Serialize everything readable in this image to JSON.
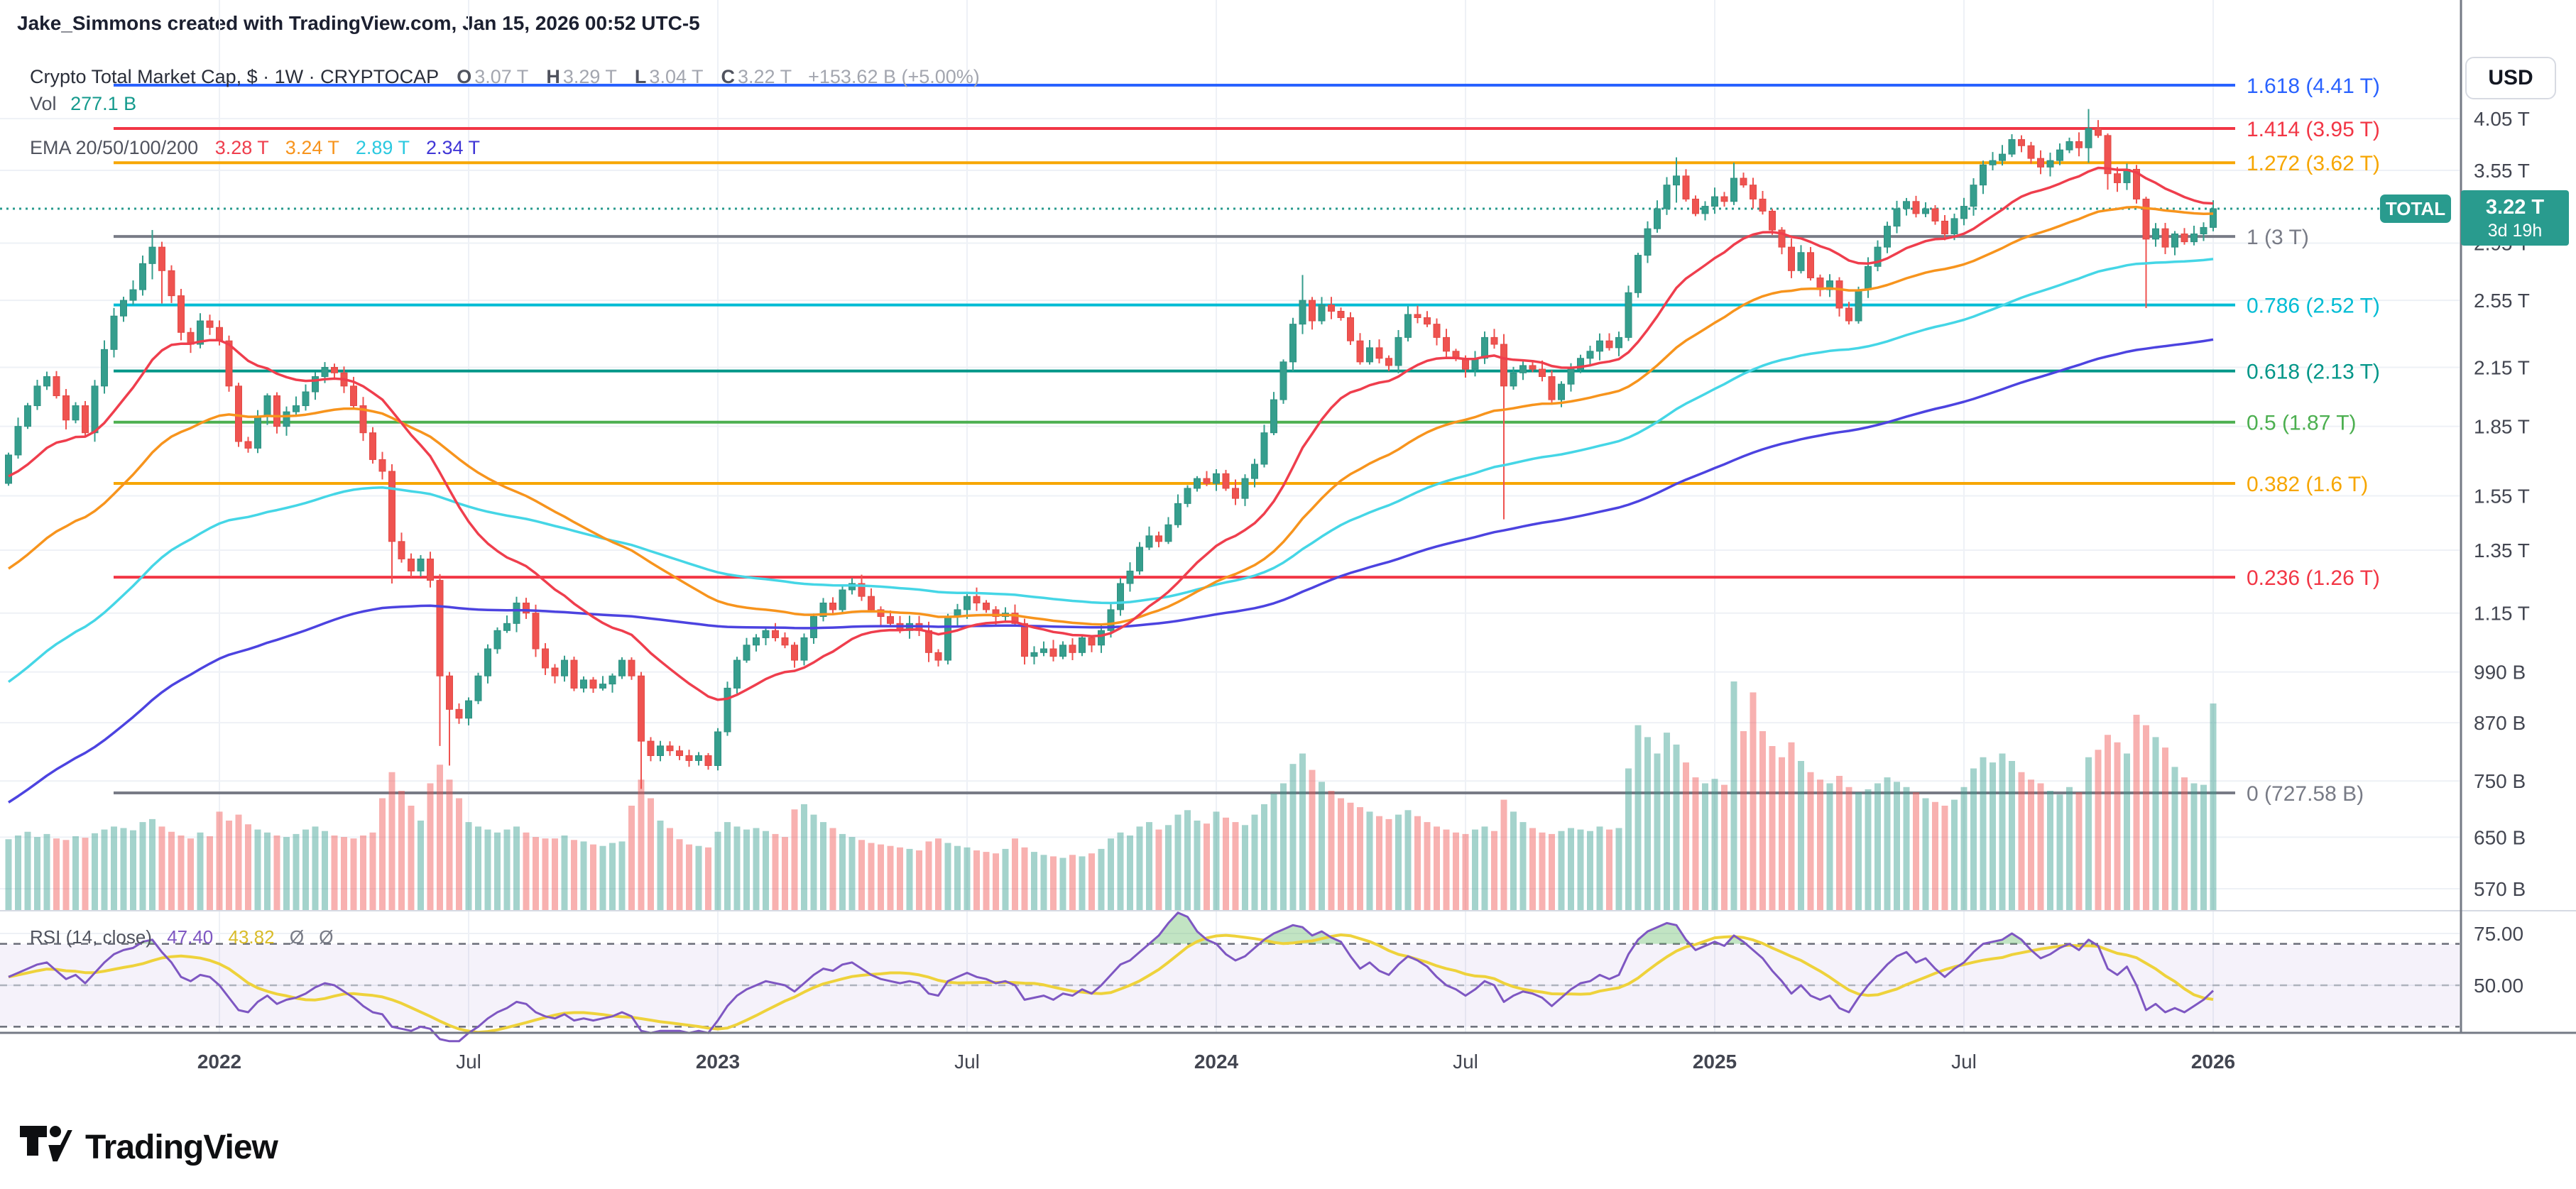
{
  "credit": "Jake_Simmons created with TradingView.com, Jan 15, 2026 00:52 UTC-5",
  "legend": {
    "title": "Crypto Total Market Cap, $ · 1W · CRYPTOCAP",
    "o_label": "O",
    "o_value": "3.07 T",
    "h_label": "H",
    "h_value": "3.29 T",
    "l_label": "L",
    "l_value": "3.04 T",
    "c_label": "C",
    "c_value": "3.22 T",
    "change": "+153.62 B (+5.00%)",
    "vol_label": "Vol",
    "vol_value": "277.1 B",
    "ema_label": "EMA 20/50/100/200",
    "ema20": "3.28 T",
    "ema50": "3.24 T",
    "ema100": "2.89 T",
    "ema200": "2.34 T"
  },
  "rsi_legend": {
    "label": "RSI (14, close)",
    "value": "47.40",
    "ma_value": "43.82",
    "na1": "Ø",
    "na2": "Ø"
  },
  "price_scale": {
    "currency": "USD",
    "badge_label": "TOTAL",
    "badge_price": "3.22 T",
    "badge_countdown": "3d 19h",
    "ticks": [
      {
        "label": "4.05 T",
        "value": 4.05
      },
      {
        "label": "3.55 T",
        "value": 3.55
      },
      {
        "label": "2.95 T",
        "value": 2.95
      },
      {
        "label": "2.55 T",
        "value": 2.55
      },
      {
        "label": "2.15 T",
        "value": 2.15
      },
      {
        "label": "1.85 T",
        "value": 1.85
      },
      {
        "label": "1.55 T",
        "value": 1.55
      },
      {
        "label": "1.35 T",
        "value": 1.35
      },
      {
        "label": "1.15 T",
        "value": 1.15
      },
      {
        "label": "990 B",
        "value": 0.99
      },
      {
        "label": "870 B",
        "value": 0.87
      },
      {
        "label": "750 B",
        "value": 0.75
      },
      {
        "label": "650 B",
        "value": 0.65
      },
      {
        "label": "570 B",
        "value": 0.57
      }
    ]
  },
  "rsi_scale": {
    "ticks": [
      {
        "label": "75.00",
        "value": 75
      },
      {
        "label": "50.00",
        "value": 50
      }
    ]
  },
  "time_axis": {
    "ticks": [
      {
        "label": "2022",
        "week": 22,
        "major": true
      },
      {
        "label": "Jul",
        "week": 48,
        "major": false
      },
      {
        "label": "2023",
        "week": 74,
        "major": true
      },
      {
        "label": "Jul",
        "week": 100,
        "major": false
      },
      {
        "label": "2024",
        "week": 126,
        "major": true
      },
      {
        "label": "Jul",
        "week": 152,
        "major": false
      },
      {
        "label": "2025",
        "week": 178,
        "major": true
      },
      {
        "label": "Jul",
        "week": 204,
        "major": false
      },
      {
        "label": "2026",
        "week": 230,
        "major": true
      }
    ]
  },
  "fib": {
    "levels": [
      {
        "ratio": "1.618",
        "label": "1.618 (4.41 T)",
        "value": 4.41,
        "color": "#2962ff"
      },
      {
        "ratio": "1.414",
        "label": "1.414 (3.95 T)",
        "value": 3.95,
        "color": "#f23645"
      },
      {
        "ratio": "1.272",
        "label": "1.272 (3.62 T)",
        "value": 3.62,
        "color": "#f7a600"
      },
      {
        "ratio": "1",
        "label": "1 (3 T)",
        "value": 3.0,
        "color": "#787b86"
      },
      {
        "ratio": "0.786",
        "label": "0.786 (2.52 T)",
        "value": 2.52,
        "color": "#00bcd4"
      },
      {
        "ratio": "0.618",
        "label": "0.618 (2.13 T)",
        "value": 2.13,
        "color": "#009688"
      },
      {
        "ratio": "0.5",
        "label": "0.5 (1.87 T)",
        "value": 1.87,
        "color": "#4caf50"
      },
      {
        "ratio": "0.382",
        "label": "0.382 (1.6 T)",
        "value": 1.6,
        "color": "#f7a600"
      },
      {
        "ratio": "0.236",
        "label": "0.236 (1.26 T)",
        "value": 1.26,
        "color": "#f23645"
      },
      {
        "ratio": "0",
        "label": "0 (727.58 B)",
        "value": 0.72758,
        "color": "#787b86"
      }
    ]
  },
  "footer": {
    "brand": "TradingView"
  },
  "chart_data": {
    "type": "candlestick",
    "title": "Crypto Total Market Cap",
    "symbol": "CRYPTOCAP:TOTAL",
    "timeframe": "1W",
    "x_range": {
      "start": "Aug 2021",
      "end": "Jan 2026",
      "points": 231
    },
    "y_axis": {
      "scale": "log",
      "units": "USD trillions",
      "visible_range": [
        0.52,
        4.6
      ]
    },
    "current": {
      "open": 3.07,
      "high": 3.29,
      "low": 3.04,
      "close": 3.22,
      "change_b": 153.62,
      "change_pct": 5.0,
      "volume_b": 277.1
    },
    "first_open": 1.6,
    "closes_t": [
      1.72,
      1.85,
      1.95,
      2.05,
      2.1,
      2.0,
      1.88,
      1.95,
      1.82,
      2.05,
      2.25,
      2.45,
      2.55,
      2.62,
      2.8,
      2.92,
      2.75,
      2.58,
      2.35,
      2.28,
      2.42,
      2.38,
      2.3,
      2.05,
      1.78,
      1.75,
      1.9,
      2.0,
      1.85,
      1.92,
      1.95,
      2.02,
      2.1,
      2.15,
      2.12,
      2.05,
      1.95,
      1.82,
      1.7,
      1.65,
      1.38,
      1.32,
      1.28,
      1.32,
      1.25,
      0.98,
      0.9,
      0.88,
      0.92,
      0.98,
      1.05,
      1.1,
      1.12,
      1.18,
      1.15,
      1.05,
      1.0,
      0.98,
      1.02,
      0.95,
      0.97,
      0.95,
      0.96,
      0.98,
      1.02,
      0.98,
      0.83,
      0.8,
      0.82,
      0.81,
      0.8,
      0.79,
      0.8,
      0.78,
      0.85,
      0.95,
      1.02,
      1.06,
      1.08,
      1.1,
      1.08,
      1.06,
      1.02,
      1.08,
      1.14,
      1.18,
      1.16,
      1.22,
      1.24,
      1.2,
      1.16,
      1.14,
      1.12,
      1.1,
      1.12,
      1.1,
      1.04,
      1.02,
      1.14,
      1.16,
      1.2,
      1.18,
      1.16,
      1.14,
      1.15,
      1.12,
      1.03,
      1.04,
      1.05,
      1.03,
      1.06,
      1.04,
      1.08,
      1.06,
      1.1,
      1.16,
      1.24,
      1.28,
      1.36,
      1.4,
      1.38,
      1.44,
      1.52,
      1.58,
      1.62,
      1.6,
      1.64,
      1.58,
      1.54,
      1.62,
      1.68,
      1.82,
      1.98,
      2.18,
      2.4,
      2.55,
      2.42,
      2.52,
      2.48,
      2.44,
      2.3,
      2.18,
      2.26,
      2.2,
      2.16,
      2.32,
      2.46,
      2.44,
      2.4,
      2.32,
      2.24,
      2.2,
      2.14,
      2.2,
      2.32,
      2.28,
      2.05,
      2.12,
      2.16,
      2.14,
      2.1,
      1.98,
      2.06,
      2.14,
      2.2,
      2.24,
      2.3,
      2.26,
      2.32,
      2.6,
      2.86,
      3.06,
      3.22,
      3.42,
      3.5,
      3.3,
      3.18,
      3.24,
      3.32,
      3.28,
      3.48,
      3.42,
      3.3,
      3.2,
      3.05,
      2.92,
      2.75,
      2.88,
      2.7,
      2.62,
      2.68,
      2.5,
      2.42,
      2.62,
      2.78,
      2.92,
      3.08,
      3.22,
      3.28,
      3.18,
      3.22,
      3.12,
      3.02,
      3.14,
      3.24,
      3.42,
      3.6,
      3.64,
      3.7,
      3.84,
      3.78,
      3.66,
      3.58,
      3.64,
      3.74,
      3.82,
      3.76,
      3.95,
      3.88,
      3.52,
      3.44,
      3.56,
      3.3,
      2.98,
      3.06,
      2.92,
      3.02,
      2.96,
      3.02,
      3.07,
      3.22
    ],
    "volumes_b": [
      95,
      100,
      105,
      98,
      102,
      96,
      94,
      99,
      97,
      103,
      108,
      112,
      110,
      107,
      118,
      122,
      112,
      105,
      100,
      96,
      104,
      99,
      132,
      120,
      128,
      115,
      108,
      104,
      100,
      98,
      102,
      108,
      112,
      106,
      100,
      98,
      96,
      100,
      104,
      150,
      185,
      160,
      140,
      120,
      170,
      195,
      175,
      150,
      118,
      112,
      108,
      104,
      108,
      112,
      104,
      98,
      96,
      96,
      100,
      94,
      92,
      88,
      86,
      90,
      92,
      140,
      175,
      150,
      120,
      110,
      95,
      88,
      86,
      84,
      105,
      118,
      112,
      108,
      110,
      106,
      102,
      98,
      135,
      142,
      128,
      118,
      110,
      102,
      98,
      94,
      90,
      88,
      86,
      84,
      82,
      80,
      92,
      96,
      90,
      86,
      84,
      80,
      78,
      76,
      82,
      96,
      84,
      78,
      74,
      72,
      70,
      74,
      72,
      76,
      82,
      96,
      104,
      100,
      112,
      118,
      108,
      114,
      128,
      134,
      120,
      116,
      132,
      124,
      118,
      114,
      128,
      142,
      156,
      170,
      196,
      210,
      188,
      172,
      160,
      150,
      144,
      138,
      132,
      126,
      122,
      128,
      134,
      126,
      118,
      112,
      108,
      104,
      102,
      108,
      112,
      106,
      148,
      132,
      118,
      110,
      104,
      102,
      106,
      110,
      108,
      106,
      112,
      108,
      110,
      190,
      248,
      232,
      210,
      238,
      222,
      198,
      178,
      170,
      176,
      168,
      310,
      240,
      292,
      240,
      220,
      205,
      225,
      200,
      185,
      175,
      170,
      180,
      165,
      158,
      162,
      170,
      178,
      172,
      165,
      158,
      150,
      145,
      140,
      148,
      165,
      190,
      205,
      198,
      210,
      200,
      185,
      175,
      170,
      160,
      155,
      165,
      158,
      205,
      215,
      235,
      225,
      210,
      262,
      248,
      232,
      218,
      192,
      178,
      170,
      168,
      277.1
    ],
    "rsi": [
      54,
      56,
      58,
      60,
      61,
      57,
      53,
      55,
      51,
      56,
      61,
      65,
      67,
      68,
      71,
      72,
      66,
      61,
      54,
      52,
      55,
      54,
      50,
      44,
      38,
      37,
      42,
      45,
      41,
      43,
      44,
      46,
      49,
      51,
      50,
      47,
      44,
      40,
      37,
      36,
      30,
      29,
      28,
      30,
      29,
      24,
      23,
      23,
      27,
      30,
      34,
      37,
      39,
      42,
      41,
      37,
      35,
      34,
      36,
      33,
      34,
      33,
      34,
      35,
      37,
      35,
      28,
      27,
      28,
      28,
      28,
      27,
      28,
      27,
      33,
      40,
      45,
      48,
      50,
      52,
      51,
      50,
      47,
      51,
      55,
      58,
      57,
      60,
      61,
      58,
      55,
      53,
      52,
      51,
      52,
      51,
      46,
      45,
      52,
      54,
      56,
      54,
      53,
      51,
      52,
      50,
      43,
      44,
      45,
      43,
      46,
      45,
      48,
      46,
      50,
      55,
      60,
      62,
      66,
      70,
      74,
      80,
      85,
      83,
      76,
      72,
      70,
      65,
      62,
      64,
      68,
      72,
      75,
      77,
      79,
      78,
      74,
      76,
      73,
      71,
      64,
      58,
      61,
      57,
      55,
      60,
      64,
      62,
      59,
      54,
      50,
      48,
      45,
      48,
      52,
      50,
      42,
      45,
      47,
      46,
      44,
      40,
      44,
      48,
      51,
      52,
      55,
      53,
      55,
      65,
      72,
      76,
      78,
      80,
      79,
      72,
      67,
      69,
      71,
      69,
      74,
      71,
      67,
      63,
      57,
      52,
      46,
      50,
      45,
      43,
      45,
      39,
      37,
      44,
      50,
      55,
      60,
      64,
      66,
      61,
      63,
      58,
      54,
      58,
      61,
      66,
      70,
      71,
      72,
      75,
      72,
      67,
      63,
      65,
      68,
      70,
      67,
      72,
      69,
      58,
      55,
      59,
      50,
      38,
      41,
      37,
      39,
      37,
      40,
      43,
      47.4
    ],
    "rsi_levels": {
      "overbought": 70,
      "middle": 50,
      "oversold": 30
    },
    "wick_overrides": {
      "15": [
        3.05,
        2.69
      ],
      "16": [
        2.96,
        2.53
      ],
      "40": [
        1.68,
        1.24
      ],
      "45": [
        1.27,
        0.82
      ],
      "46": [
        0.99,
        0.78
      ],
      "66": [
        0.99,
        0.735
      ],
      "135": [
        2.72,
        2.34
      ],
      "156": [
        2.34,
        1.46
      ],
      "174": [
        3.67,
        3.27
      ],
      "180": [
        3.62,
        3.25
      ],
      "217": [
        4.15,
        3.62
      ],
      "219": [
        3.9,
        3.38
      ],
      "223": [
        3.32,
        2.5
      ],
      "230": [
        3.29,
        3.04
      ]
    },
    "ema_periods": [
      20,
      50,
      100,
      200
    ],
    "ema_seeds": [
      1.62,
      1.27,
      0.95,
      0.7
    ],
    "colors": {
      "up": "#359e8d",
      "down": "#ef5350",
      "up_border": "#2f9082",
      "down_border": "#e24a46",
      "vol_up": "rgba(53,158,141,0.45)",
      "vol_down": "rgba(239,83,80,0.45)",
      "ema": [
        "#ef3e4d",
        "#f7941d",
        "#45d6e6",
        "#4c43e0"
      ],
      "rsi_line": "#7e57c2",
      "rsi_ma": "#eed23b",
      "rsi_band": "rgba(126,87,194,0.08)",
      "rsi_over_fill": "rgba(102,187,106,0.40)",
      "current_line": "#299b8e",
      "grid": "#eef1f6",
      "axis_text": "#434651",
      "separator": "#757a85",
      "pane_separator": "#d6dae3"
    }
  }
}
